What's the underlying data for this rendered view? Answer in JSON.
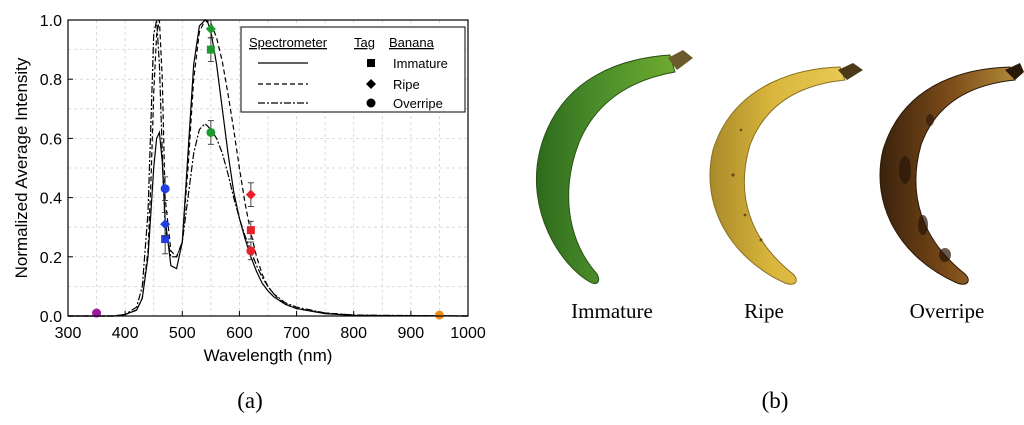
{
  "panel_a": {
    "label": "(a)",
    "legend": {
      "headers": [
        "Spectrometer",
        "Tag",
        "Banana"
      ],
      "rows": [
        {
          "line": "solid",
          "marker": "square",
          "label": "Immature"
        },
        {
          "line": "dashed",
          "marker": "diamond",
          "label": "Ripe"
        },
        {
          "line": "dashdot",
          "marker": "circle",
          "label": "Overripe"
        }
      ]
    }
  },
  "panel_b": {
    "label": "(b)",
    "captions": [
      "Immature",
      "Ripe",
      "Overripe"
    ]
  },
  "colors": {
    "blue": "#1f3fe0",
    "green": "#1e9b2e",
    "red": "#e8202a",
    "purple": "#9a1aa0",
    "orange": "#f28c1a"
  },
  "chart_data": {
    "type": "line",
    "title": "",
    "xlabel": "Wavelength (nm)",
    "ylabel": "Normalized Average Intensity",
    "xlim": [
      300,
      1000
    ],
    "ylim": [
      0,
      1.0
    ],
    "xticks": [
      300,
      400,
      500,
      600,
      700,
      800,
      900,
      1000
    ],
    "yticks": [
      0.0,
      0.2,
      0.4,
      0.6,
      0.8,
      1.0
    ],
    "grid": true,
    "legend_position": "top-right",
    "series": [
      {
        "name": "Immature",
        "style": "solid",
        "x": [
          300,
          380,
          400,
          420,
          430,
          440,
          445,
          450,
          455,
          460,
          465,
          470,
          480,
          490,
          500,
          510,
          520,
          530,
          540,
          545,
          550,
          560,
          570,
          580,
          590,
          600,
          610,
          620,
          630,
          640,
          650,
          660,
          680,
          700,
          750,
          800,
          1000
        ],
        "y": [
          0,
          0,
          0.005,
          0.02,
          0.06,
          0.2,
          0.35,
          0.5,
          0.6,
          0.62,
          0.52,
          0.33,
          0.17,
          0.16,
          0.25,
          0.55,
          0.85,
          0.98,
          1.0,
          0.99,
          0.96,
          0.85,
          0.7,
          0.55,
          0.42,
          0.33,
          0.26,
          0.2,
          0.15,
          0.11,
          0.085,
          0.065,
          0.04,
          0.025,
          0.008,
          0.002,
          0
        ]
      },
      {
        "name": "Ripe",
        "style": "dashed",
        "x": [
          300,
          380,
          400,
          420,
          430,
          440,
          445,
          450,
          455,
          460,
          465,
          470,
          480,
          490,
          500,
          510,
          520,
          530,
          540,
          550,
          560,
          570,
          580,
          590,
          600,
          610,
          620,
          630,
          640,
          650,
          660,
          670,
          680,
          700,
          750,
          800,
          850,
          1000
        ],
        "y": [
          0,
          0,
          0.005,
          0.02,
          0.06,
          0.22,
          0.45,
          0.75,
          0.95,
          1.0,
          0.8,
          0.4,
          0.22,
          0.2,
          0.25,
          0.5,
          0.8,
          0.96,
          1.0,
          0.99,
          0.94,
          0.86,
          0.75,
          0.63,
          0.5,
          0.38,
          0.28,
          0.2,
          0.14,
          0.1,
          0.075,
          0.055,
          0.04,
          0.025,
          0.01,
          0.003,
          0.001,
          0
        ]
      },
      {
        "name": "Overripe",
        "style": "dashdot",
        "x": [
          300,
          380,
          400,
          420,
          430,
          440,
          445,
          450,
          455,
          460,
          465,
          470,
          480,
          490,
          500,
          510,
          520,
          530,
          540,
          550,
          560,
          570,
          580,
          590,
          600,
          610,
          620,
          630,
          640,
          650,
          660,
          680,
          700,
          750,
          800,
          1000
        ],
        "y": [
          0,
          0,
          0.005,
          0.03,
          0.1,
          0.35,
          0.65,
          0.95,
          1.0,
          0.85,
          0.55,
          0.3,
          0.2,
          0.2,
          0.25,
          0.4,
          0.55,
          0.63,
          0.65,
          0.63,
          0.6,
          0.55,
          0.48,
          0.4,
          0.33,
          0.27,
          0.22,
          0.17,
          0.13,
          0.1,
          0.075,
          0.045,
          0.03,
          0.01,
          0.003,
          0
        ]
      }
    ],
    "markers": [
      {
        "x": 470,
        "y": 0.26,
        "shape": "square",
        "color": "blue",
        "err": 0.05
      },
      {
        "x": 470,
        "y": 0.31,
        "shape": "diamond",
        "color": "blue",
        "err": 0.04
      },
      {
        "x": 470,
        "y": 0.43,
        "shape": "circle",
        "color": "blue",
        "err": 0.04
      },
      {
        "x": 550,
        "y": 0.9,
        "shape": "square",
        "color": "green",
        "err": 0.04
      },
      {
        "x": 550,
        "y": 0.97,
        "shape": "diamond",
        "color": "green",
        "err": 0.03
      },
      {
        "x": 550,
        "y": 0.62,
        "shape": "circle",
        "color": "green",
        "err": 0.04
      },
      {
        "x": 620,
        "y": 0.29,
        "shape": "square",
        "color": "red",
        "err": 0.03
      },
      {
        "x": 620,
        "y": 0.41,
        "shape": "diamond",
        "color": "red",
        "err": 0.04
      },
      {
        "x": 620,
        "y": 0.22,
        "shape": "circle",
        "color": "red",
        "err": 0.03
      },
      {
        "x": 350,
        "y": 0.01,
        "shape": "circle",
        "color": "purple",
        "err": 0
      },
      {
        "x": 950,
        "y": 0.003,
        "shape": "circle",
        "color": "orange",
        "err": 0
      }
    ]
  }
}
